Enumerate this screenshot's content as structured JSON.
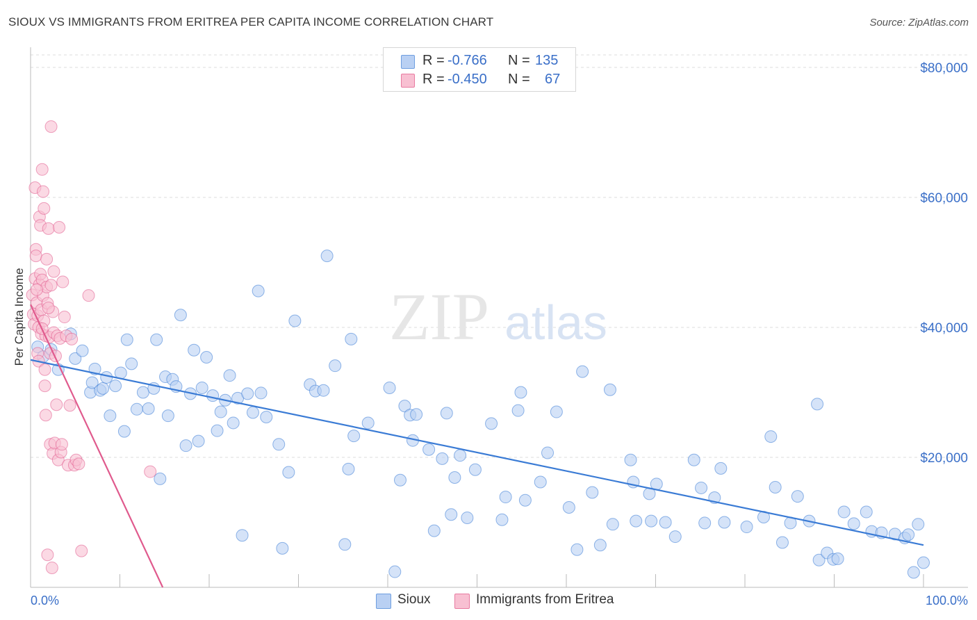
{
  "header": {
    "title": "SIOUX VS IMMIGRANTS FROM ERITREA PER CAPITA INCOME CORRELATION CHART",
    "source": "Source: ZipAtlas.com"
  },
  "watermark": {
    "zip": "ZIP",
    "atlas": "atlas"
  },
  "legend": {
    "rows": [
      {
        "r_label": "R =",
        "r_value": "-0.766",
        "n_label": "N =",
        "n_value": "135",
        "color": "#6e9ee0",
        "fill": "#b9d0f3"
      },
      {
        "r_label": "R =",
        "r_value": "-0.450",
        "n_label": "N =",
        "n_value": "67",
        "color": "#e87aa0",
        "fill": "#f8c0d2"
      }
    ]
  },
  "bottom_legend": [
    {
      "label": "Sioux",
      "color": "#6e9ee0",
      "fill": "#b9d0f3"
    },
    {
      "label": "Immigrants from Eritrea",
      "color": "#e87aa0",
      "fill": "#f8c0d2"
    }
  ],
  "chart_data": {
    "type": "scatter",
    "title": "SIOUX VS IMMIGRANTS FROM ERITREA PER CAPITA INCOME CORRELATION CHART",
    "xlabel": "",
    "ylabel": "Per Capita Income",
    "xlim": [
      0,
      100
    ],
    "ylim": [
      0,
      80000
    ],
    "x_tick_labels": [
      "0.0%",
      "100.0%"
    ],
    "y_ticks": [
      20000,
      40000,
      60000,
      80000
    ],
    "y_tick_labels": [
      "$20,000",
      "$40,000",
      "$60,000",
      "$80,000"
    ],
    "grid": true,
    "series": [
      {
        "name": "Sioux",
        "color": "#3a7bd5",
        "fill": "#b9d0f3",
        "trend": [
          [
            0,
            35000
          ],
          [
            100,
            6500
          ]
        ],
        "points": [
          [
            0.8,
            37000
          ],
          [
            1.4,
            35500
          ],
          [
            2.3,
            36600
          ],
          [
            3.1,
            33500
          ],
          [
            4.5,
            39000
          ],
          [
            5.0,
            35200
          ],
          [
            5.8,
            36400
          ],
          [
            6.7,
            30000
          ],
          [
            6.9,
            31500
          ],
          [
            7.2,
            33600
          ],
          [
            7.8,
            30300
          ],
          [
            8.1,
            30600
          ],
          [
            8.5,
            32300
          ],
          [
            8.9,
            26400
          ],
          [
            9.5,
            31000
          ],
          [
            10.1,
            33000
          ],
          [
            10.5,
            24000
          ],
          [
            10.8,
            38100
          ],
          [
            11.3,
            34400
          ],
          [
            11.9,
            27400
          ],
          [
            12.6,
            30000
          ],
          [
            13.2,
            27500
          ],
          [
            13.8,
            30600
          ],
          [
            14.1,
            38100
          ],
          [
            14.5,
            16700
          ],
          [
            15.1,
            32400
          ],
          [
            15.4,
            26400
          ],
          [
            15.9,
            32000
          ],
          [
            16.3,
            30900
          ],
          [
            16.8,
            41900
          ],
          [
            17.4,
            21800
          ],
          [
            17.9,
            29800
          ],
          [
            18.3,
            36500
          ],
          [
            18.8,
            22500
          ],
          [
            19.2,
            30700
          ],
          [
            19.7,
            35400
          ],
          [
            20.4,
            29500
          ],
          [
            20.9,
            24100
          ],
          [
            21.3,
            27000
          ],
          [
            21.8,
            28800
          ],
          [
            22.3,
            32600
          ],
          [
            22.7,
            25300
          ],
          [
            23.2,
            29100
          ],
          [
            23.7,
            8000
          ],
          [
            24.3,
            29800
          ],
          [
            24.9,
            26900
          ],
          [
            25.5,
            45600
          ],
          [
            25.8,
            29900
          ],
          [
            26.4,
            26200
          ],
          [
            27.8,
            22000
          ],
          [
            28.2,
            6000
          ],
          [
            28.9,
            17700
          ],
          [
            29.6,
            41000
          ],
          [
            31.3,
            31200
          ],
          [
            31.9,
            30200
          ],
          [
            32.8,
            30300
          ],
          [
            33.2,
            51000
          ],
          [
            34.1,
            34100
          ],
          [
            35.2,
            6600
          ],
          [
            35.6,
            18200
          ],
          [
            35.9,
            38200
          ],
          [
            36.2,
            23300
          ],
          [
            37.8,
            25300
          ],
          [
            40.2,
            30700
          ],
          [
            40.8,
            2400
          ],
          [
            41.4,
            16500
          ],
          [
            41.9,
            27900
          ],
          [
            42.5,
            26500
          ],
          [
            42.8,
            22600
          ],
          [
            43.2,
            26600
          ],
          [
            44.6,
            21200
          ],
          [
            45.2,
            8700
          ],
          [
            46.1,
            19800
          ],
          [
            46.6,
            26800
          ],
          [
            47.1,
            11200
          ],
          [
            47.5,
            16900
          ],
          [
            48.1,
            20300
          ],
          [
            48.9,
            10700
          ],
          [
            49.8,
            18100
          ],
          [
            51.6,
            25200
          ],
          [
            52.8,
            10400
          ],
          [
            53.2,
            13900
          ],
          [
            54.6,
            27200
          ],
          [
            54.9,
            30000
          ],
          [
            55.4,
            13400
          ],
          [
            57.1,
            16200
          ],
          [
            57.9,
            20700
          ],
          [
            58.9,
            27000
          ],
          [
            60.3,
            12300
          ],
          [
            61.2,
            5800
          ],
          [
            61.8,
            33200
          ],
          [
            62.9,
            14600
          ],
          [
            63.8,
            6500
          ],
          [
            64.9,
            30400
          ],
          [
            65.2,
            9700
          ],
          [
            67.2,
            19600
          ],
          [
            67.5,
            16200
          ],
          [
            67.8,
            10200
          ],
          [
            69.3,
            14400
          ],
          [
            69.5,
            10200
          ],
          [
            70.1,
            15900
          ],
          [
            71.1,
            10000
          ],
          [
            72.2,
            7800
          ],
          [
            74.3,
            19600
          ],
          [
            75.1,
            15300
          ],
          [
            75.5,
            9900
          ],
          [
            76.6,
            13800
          ],
          [
            77.3,
            18300
          ],
          [
            77.7,
            10000
          ],
          [
            80.2,
            9300
          ],
          [
            82.1,
            10800
          ],
          [
            82.9,
            23200
          ],
          [
            83.4,
            15400
          ],
          [
            84.2,
            6900
          ],
          [
            85.1,
            9900
          ],
          [
            85.9,
            14000
          ],
          [
            87.2,
            10200
          ],
          [
            88.1,
            28200
          ],
          [
            88.3,
            4200
          ],
          [
            89.2,
            5300
          ],
          [
            89.9,
            4300
          ],
          [
            90.4,
            4400
          ],
          [
            91.1,
            11600
          ],
          [
            92.2,
            9800
          ],
          [
            93.6,
            11600
          ],
          [
            94.2,
            8600
          ],
          [
            95.3,
            8400
          ],
          [
            96.8,
            8200
          ],
          [
            97.9,
            7600
          ],
          [
            98.3,
            8100
          ],
          [
            98.9,
            2300
          ],
          [
            99.4,
            9700
          ],
          [
            100.0,
            3800
          ]
        ]
      },
      {
        "name": "Immigrants from Eritrea",
        "color": "#e05a8d",
        "fill": "#f8c0d2",
        "trend": [
          [
            0,
            43500
          ],
          [
            14.8,
            0
          ]
        ],
        "points": [
          [
            0.2,
            45000
          ],
          [
            0.3,
            42000
          ],
          [
            0.4,
            40500
          ],
          [
            0.5,
            47500
          ],
          [
            0.5,
            61500
          ],
          [
            0.6,
            52000
          ],
          [
            0.6,
            51000
          ],
          [
            0.7,
            43800
          ],
          [
            0.8,
            41800
          ],
          [
            0.8,
            36000
          ],
          [
            0.9,
            40000
          ],
          [
            0.9,
            34800
          ],
          [
            1.0,
            57000
          ],
          [
            1.0,
            46600
          ],
          [
            1.1,
            55700
          ],
          [
            1.1,
            48200
          ],
          [
            1.2,
            42700
          ],
          [
            1.2,
            39000
          ],
          [
            1.3,
            64300
          ],
          [
            1.3,
            47300
          ],
          [
            1.4,
            60900
          ],
          [
            1.4,
            44900
          ],
          [
            1.5,
            58300
          ],
          [
            1.5,
            41000
          ],
          [
            1.6,
            33500
          ],
          [
            1.6,
            31000
          ],
          [
            1.7,
            38700
          ],
          [
            1.7,
            26500
          ],
          [
            1.8,
            50500
          ],
          [
            1.8,
            46200
          ],
          [
            1.9,
            43700
          ],
          [
            1.9,
            5000
          ],
          [
            2.0,
            55200
          ],
          [
            2.1,
            38500
          ],
          [
            2.2,
            36000
          ],
          [
            2.2,
            22000
          ],
          [
            2.3,
            46500
          ],
          [
            2.3,
            70900
          ],
          [
            2.4,
            3000
          ],
          [
            2.5,
            42400
          ],
          [
            2.5,
            20600
          ],
          [
            2.6,
            48600
          ],
          [
            2.6,
            39200
          ],
          [
            2.7,
            22200
          ],
          [
            2.8,
            35600
          ],
          [
            2.9,
            28100
          ],
          [
            3.0,
            38700
          ],
          [
            3.1,
            19600
          ],
          [
            3.2,
            55400
          ],
          [
            3.3,
            38300
          ],
          [
            3.4,
            20800
          ],
          [
            3.5,
            22000
          ],
          [
            3.6,
            47000
          ],
          [
            3.8,
            41600
          ],
          [
            4.0,
            38700
          ],
          [
            4.2,
            18800
          ],
          [
            4.4,
            28000
          ],
          [
            4.6,
            38200
          ],
          [
            4.9,
            18800
          ],
          [
            5.1,
            19600
          ],
          [
            5.4,
            19000
          ],
          [
            5.7,
            5600
          ],
          [
            6.5,
            44900
          ],
          [
            13.4,
            17800
          ],
          [
            1.3,
            39800
          ],
          [
            2.0,
            43000
          ],
          [
            0.7,
            45800
          ]
        ]
      }
    ]
  }
}
